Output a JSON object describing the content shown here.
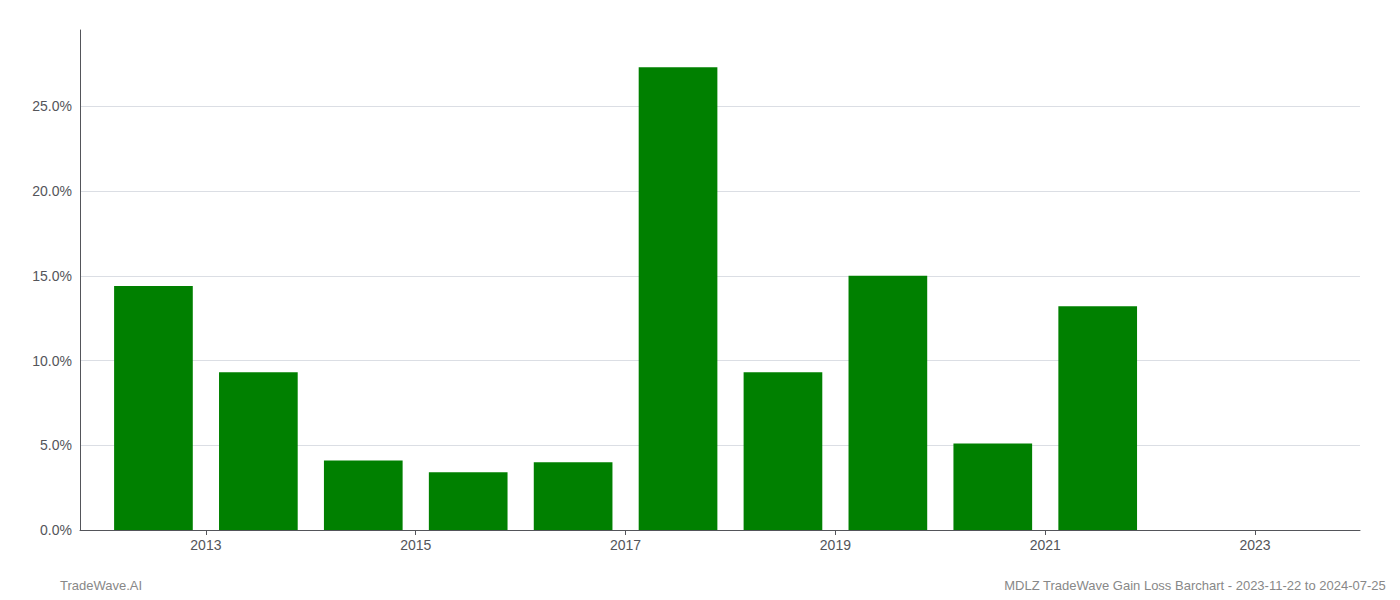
{
  "chart_data": {
    "type": "bar",
    "x": [
      2012.5,
      2013.5,
      2014.5,
      2015.5,
      2016.5,
      2017.5,
      2018.5,
      2019.5,
      2020.5,
      2021.5
    ],
    "values": [
      0.144,
      0.093,
      0.041,
      0.034,
      0.04,
      0.273,
      0.093,
      0.15,
      0.051,
      0.132
    ],
    "color": "#008000",
    "xlim": [
      2011.8,
      2024.0
    ],
    "xticks": [
      2013,
      2015,
      2017,
      2019,
      2021,
      2023
    ],
    "ylim": [
      0,
      0.295
    ],
    "yticks": [
      {
        "value": 0.0,
        "label": "0.0%"
      },
      {
        "value": 0.05,
        "label": "5.0%"
      },
      {
        "value": 0.1,
        "label": "10.0%"
      },
      {
        "value": 0.15,
        "label": "15.0%"
      },
      {
        "value": 0.2,
        "label": "20.0%"
      },
      {
        "value": 0.25,
        "label": "25.0%"
      }
    ],
    "grid": true,
    "annotations": [
      "TradeWave.AI",
      "MDLZ TradeWave Gain Loss Barchart - 2023-11-22 to 2024-07-25"
    ]
  }
}
